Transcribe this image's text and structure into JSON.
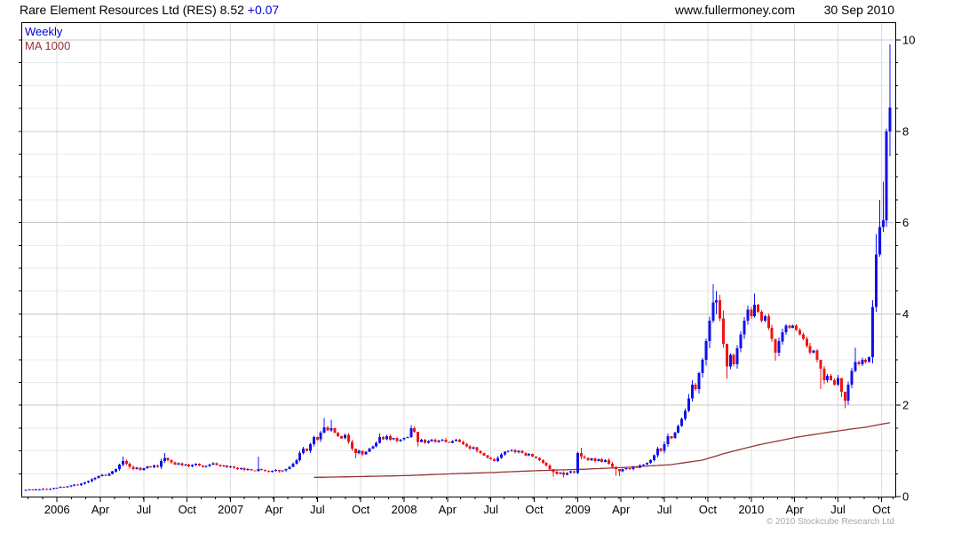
{
  "header": {
    "title_main": "Rare Element Resources Ltd (RES) 8.52",
    "title_change": "+0.07",
    "site": "www.fullermoney.com",
    "date": "30 Sep 2010"
  },
  "legend": {
    "series1": "Weekly",
    "series2": "MA 1000"
  },
  "footer": {
    "copyright": "© 2010 Stockcube Research Ltd"
  },
  "colors": {
    "up": "#1010f0",
    "down": "#f01414",
    "ma": "#993333",
    "grid_major": "#c8c8c8",
    "grid_minor": "#ebebeb",
    "grid_vertical": "#dcdcdc",
    "axis": "#000000",
    "change_text": "#0000cd",
    "copyright_text": "#a8a8a8"
  },
  "chart_data": {
    "type": "candlestick",
    "title": "Rare Element Resources Ltd (RES)",
    "interval": "Weekly",
    "last_price": 8.52,
    "change": 0.07,
    "ylim": [
      0,
      10.4
    ],
    "y_major_ticks": [
      0,
      2,
      4,
      6,
      8,
      10
    ],
    "y_minor_step": 0.5,
    "grid": true,
    "legend_position": "top-left",
    "x_tick_labels": [
      "2006",
      "Apr",
      "Jul",
      "Oct",
      "2007",
      "Apr",
      "Jul",
      "Oct",
      "2008",
      "Apr",
      "Jul",
      "Oct",
      "2009",
      "Apr",
      "Jul",
      "Oct",
      "2010",
      "Apr",
      "Jul",
      "Oct"
    ],
    "x_tick_weeks": [
      9,
      21.5,
      34,
      46.5,
      59,
      71.5,
      84,
      96.5,
      109,
      121.5,
      134,
      146.5,
      159,
      171.5,
      184,
      196.5,
      209,
      221.5,
      234,
      246.5
    ],
    "series": [
      {
        "name": "Weekly",
        "kind": "candlestick",
        "weekly_closes": [
          0.15,
          0.16,
          0.15,
          0.16,
          0.16,
          0.17,
          0.16,
          0.17,
          0.18,
          0.19,
          0.21,
          0.2,
          0.22,
          0.24,
          0.26,
          0.25,
          0.28,
          0.31,
          0.34,
          0.38,
          0.41,
          0.45,
          0.48,
          0.46,
          0.5,
          0.55,
          0.6,
          0.7,
          0.78,
          0.72,
          0.65,
          0.6,
          0.63,
          0.58,
          0.62,
          0.66,
          0.64,
          0.68,
          0.65,
          0.78,
          0.85,
          0.8,
          0.75,
          0.7,
          0.73,
          0.68,
          0.7,
          0.66,
          0.69,
          0.72,
          0.68,
          0.65,
          0.67,
          0.7,
          0.73,
          0.69,
          0.66,
          0.68,
          0.64,
          0.66,
          0.63,
          0.6,
          0.62,
          0.58,
          0.6,
          0.57,
          0.56,
          0.6,
          0.58,
          0.56,
          0.54,
          0.56,
          0.58,
          0.55,
          0.57,
          0.6,
          0.65,
          0.72,
          0.8,
          0.95,
          1.05,
          1.0,
          1.15,
          1.3,
          1.25,
          1.4,
          1.52,
          1.45,
          1.5,
          1.4,
          1.32,
          1.28,
          1.35,
          1.2,
          1.05,
          0.95,
          1.0,
          0.92,
          0.98,
          1.05,
          1.1,
          1.18,
          1.3,
          1.26,
          1.32,
          1.25,
          1.28,
          1.22,
          1.25,
          1.28,
          1.3,
          1.5,
          1.42,
          1.2,
          1.25,
          1.18,
          1.22,
          1.25,
          1.2,
          1.23,
          1.25,
          1.2,
          1.18,
          1.22,
          1.25,
          1.2,
          1.15,
          1.1,
          1.05,
          1.08,
          1.0,
          0.95,
          0.9,
          0.85,
          0.82,
          0.78,
          0.85,
          0.92,
          0.98,
          1.0,
          1.02,
          0.97,
          1.0,
          0.95,
          0.9,
          0.93,
          0.88,
          0.85,
          0.8,
          0.74,
          0.68,
          0.6,
          0.54,
          0.5,
          0.53,
          0.48,
          0.52,
          0.55,
          0.52,
          0.95,
          0.88,
          0.85,
          0.8,
          0.84,
          0.78,
          0.82,
          0.76,
          0.8,
          0.72,
          0.65,
          0.6,
          0.56,
          0.6,
          0.62,
          0.6,
          0.65,
          0.63,
          0.68,
          0.7,
          0.74,
          0.8,
          0.9,
          1.05,
          1.0,
          1.15,
          1.32,
          1.28,
          1.4,
          1.55,
          1.7,
          1.88,
          2.15,
          2.45,
          2.35,
          2.7,
          3.0,
          3.4,
          3.85,
          4.25,
          4.3,
          3.9,
          3.35,
          2.85,
          3.1,
          2.9,
          3.25,
          3.55,
          3.85,
          4.1,
          3.95,
          4.2,
          4.05,
          3.85,
          3.95,
          3.7,
          3.45,
          3.15,
          3.4,
          3.6,
          3.75,
          3.7,
          3.75,
          3.65,
          3.55,
          3.45,
          3.3,
          3.15,
          3.2,
          3.0,
          2.8,
          2.55,
          2.65,
          2.55,
          2.45,
          2.6,
          2.3,
          2.1,
          2.45,
          2.75,
          2.95,
          2.9,
          3.0,
          2.95,
          3.05,
          4.15,
          5.3,
          5.9,
          6.05,
          8.0,
          8.52
        ],
        "wick_overrides": {
          "28": [
            0.88,
            0.66
          ],
          "40": [
            0.95,
            0.74
          ],
          "67": [
            0.88,
            0.55
          ],
          "86": [
            1.72,
            1.38
          ],
          "88": [
            1.68,
            1.42
          ],
          "95": [
            1.02,
            0.84
          ],
          "102": [
            1.38,
            1.16
          ],
          "111": [
            1.57,
            1.28
          ],
          "113": [
            1.35,
            1.1
          ],
          "152": [
            0.6,
            0.44
          ],
          "155": [
            0.55,
            0.42
          ],
          "159": [
            0.98,
            0.5
          ],
          "160": [
            1.07,
            0.82
          ],
          "170": [
            0.66,
            0.46
          ],
          "171": [
            0.6,
            0.45
          ],
          "191": [
            2.25,
            1.85
          ],
          "198": [
            4.65,
            3.8
          ],
          "199": [
            4.5,
            4.0
          ],
          "202": [
            3.05,
            2.58
          ],
          "210": [
            4.45,
            3.92
          ],
          "216": [
            3.42,
            2.98
          ],
          "229": [
            2.92,
            2.35
          ],
          "235": [
            2.42,
            2.18
          ],
          "236": [
            2.2,
            1.94
          ],
          "239": [
            3.26,
            2.72
          ],
          "245": [
            5.75,
            4.05
          ],
          "246": [
            6.5,
            5.25
          ],
          "247": [
            6.9,
            5.8
          ],
          "248": [
            8.05,
            5.9
          ],
          "249": [
            9.9,
            7.45
          ]
        }
      },
      {
        "name": "MA 1000",
        "kind": "line",
        "points_week_value": [
          [
            83,
            0.42
          ],
          [
            97,
            0.44
          ],
          [
            110,
            0.46
          ],
          [
            123,
            0.5
          ],
          [
            135,
            0.53
          ],
          [
            148,
            0.57
          ],
          [
            161,
            0.6
          ],
          [
            173,
            0.64
          ],
          [
            186,
            0.7
          ],
          [
            195,
            0.8
          ],
          [
            202,
            0.96
          ],
          [
            211,
            1.13
          ],
          [
            222,
            1.3
          ],
          [
            235,
            1.45
          ],
          [
            242,
            1.52
          ],
          [
            249,
            1.62
          ]
        ]
      }
    ]
  }
}
